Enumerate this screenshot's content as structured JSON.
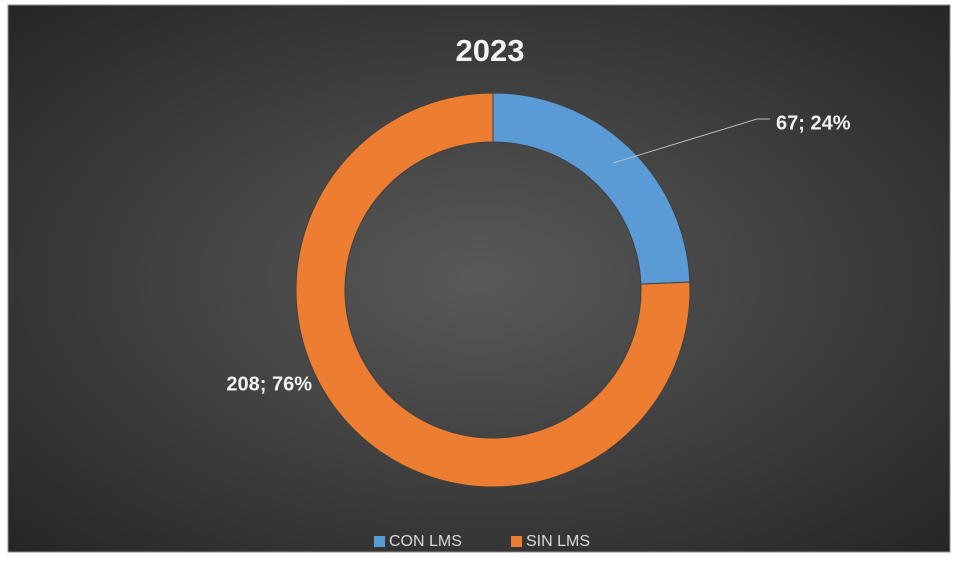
{
  "chart_data": {
    "type": "donut",
    "title": "2023",
    "categories": [
      "CON LMS",
      "SIN LMS"
    ],
    "values": [
      67,
      208
    ],
    "value_labels": [
      "67; 24%",
      "208; 76%"
    ],
    "colors": [
      "#5b9bd5",
      "#ed7d31"
    ],
    "legend": "bottom"
  }
}
